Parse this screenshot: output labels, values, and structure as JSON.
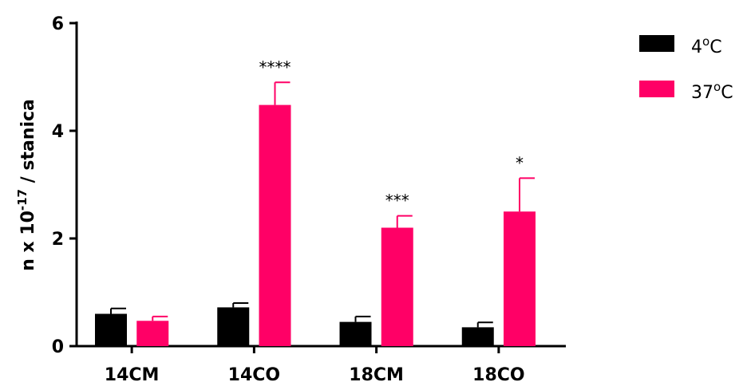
{
  "chart_data": {
    "type": "bar",
    "title": "",
    "xlabel": "",
    "ylabel": {
      "prefix": "n x 10",
      "exponent": "-17",
      "suffix": " / stanica"
    },
    "ylim": [
      0,
      6
    ],
    "yticks": [
      "0",
      "2",
      "4",
      "6"
    ],
    "categories": [
      "14CM",
      "14CO",
      "18CM",
      "18CO"
    ],
    "series": [
      {
        "name": "4°C",
        "name_parts": {
          "base": "4",
          "sup": "o",
          "unit": "C"
        },
        "color": "#000000",
        "values": [
          0.6,
          0.72,
          0.45,
          0.35
        ],
        "errors": [
          0.1,
          0.08,
          0.1,
          0.09
        ]
      },
      {
        "name": "37°C",
        "name_parts": {
          "base": "37",
          "sup": "o",
          "unit": "C"
        },
        "color": "#FF0066",
        "values": [
          0.47,
          4.48,
          2.2,
          2.5
        ],
        "errors": [
          0.08,
          0.42,
          0.22,
          0.62
        ]
      }
    ],
    "significance": [
      "",
      "****",
      "***",
      "*"
    ],
    "legend_position": "top-right",
    "grid": false
  }
}
